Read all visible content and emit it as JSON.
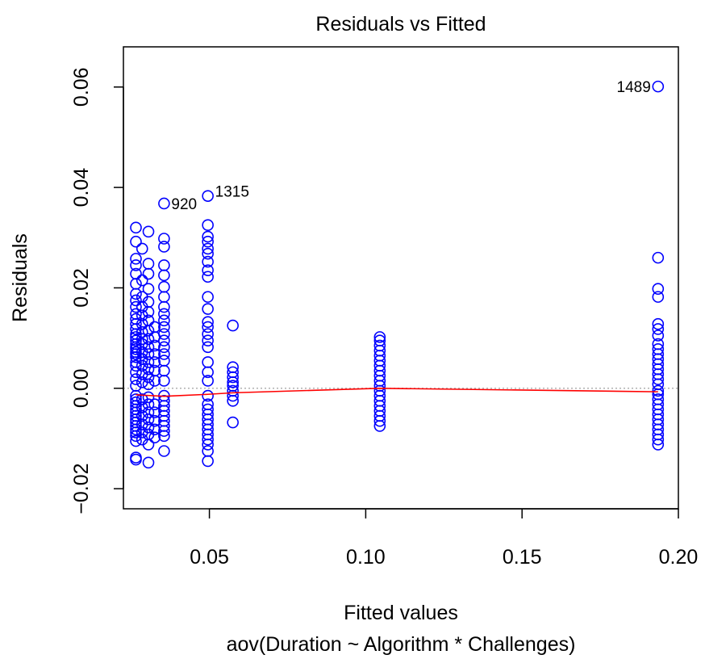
{
  "chart_data": {
    "type": "scatter",
    "title": "Residuals vs Fitted",
    "xlabel": "Fitted values",
    "sublabel": "aov(Duration ~ Algorithm * Challenges)",
    "ylabel": "Residuals",
    "xlim": [
      0.0225,
      0.2
    ],
    "ylim": [
      -0.024,
      0.068
    ],
    "x_ticks": [
      0.05,
      0.1,
      0.15,
      0.2
    ],
    "x_tick_labels": [
      "0.05",
      "0.10",
      "0.15",
      "0.20"
    ],
    "y_ticks": [
      -0.02,
      0.0,
      0.02,
      0.04,
      0.06
    ],
    "y_tick_labels": [
      "−0.02",
      "0.00",
      "0.02",
      "0.04",
      "0.06"
    ],
    "grid": false,
    "reference_line_y": 0,
    "point_color": "#0000ff",
    "smooth_color": "#ff0000",
    "reference_color": "#b0b0b0",
    "groups": [
      {
        "x": 0.0265,
        "residuals": [
          -0.0142,
          -0.0138,
          -0.0105,
          -0.0095,
          -0.0088,
          -0.0082,
          -0.0075,
          -0.0068,
          -0.0062,
          -0.0055,
          -0.0048,
          -0.0042,
          -0.0035,
          -0.0028,
          -0.0022,
          -0.0015,
          0.0005,
          0.0018,
          0.0032,
          0.0045,
          0.0052,
          0.0062,
          0.0068,
          0.0072,
          0.0078,
          0.0082,
          0.0088,
          0.0095,
          0.0102,
          0.0108,
          0.0118,
          0.0128,
          0.0138,
          0.0148,
          0.0162,
          0.0175,
          0.0188,
          0.0208,
          0.0228,
          0.0245,
          0.0258,
          0.0292,
          0.032
        ]
      },
      {
        "x": 0.0285,
        "residuals": [
          -0.0102,
          -0.0088,
          -0.0072,
          -0.0055,
          -0.0038,
          -0.0022,
          0.0012,
          0.0028,
          0.0045,
          0.0058,
          0.0072,
          0.0088,
          0.0098,
          0.0112,
          0.0128,
          0.0145,
          0.0162,
          0.0182,
          0.0215,
          0.0278
        ]
      },
      {
        "x": 0.0305,
        "residuals": [
          -0.0148,
          -0.0112,
          -0.0092,
          -0.0078,
          -0.0062,
          -0.0048,
          -0.0032,
          -0.0018,
          0.0008,
          0.0022,
          0.0038,
          0.0052,
          0.0068,
          0.0082,
          0.0098,
          0.0115,
          0.0135,
          0.0152,
          0.0172,
          0.0198,
          0.0228,
          0.0248,
          0.0312
        ]
      },
      {
        "x": 0.0325,
        "residuals": [
          -0.0098,
          -0.0082,
          -0.0065,
          -0.0048,
          -0.0032,
          0.0015,
          0.0035,
          0.0052,
          0.0068,
          0.0085,
          0.0102,
          0.0122
        ]
      },
      {
        "x": 0.0355,
        "residuals": [
          -0.0125,
          -0.0095,
          -0.0085,
          -0.0075,
          -0.0065,
          -0.0055,
          -0.0045,
          -0.0035,
          -0.0025,
          -0.0015,
          0.0015,
          0.0035,
          0.0055,
          0.0068,
          0.0082,
          0.0095,
          0.0108,
          0.0122,
          0.0135,
          0.0148,
          0.0162,
          0.0182,
          0.0202,
          0.0225,
          0.0245,
          0.0282,
          0.0298,
          0.0368
        ]
      },
      {
        "x": 0.0495,
        "residuals": [
          -0.0145,
          -0.0125,
          -0.0112,
          -0.0102,
          -0.0092,
          -0.0082,
          -0.0072,
          -0.0062,
          -0.0052,
          -0.0042,
          -0.0032,
          -0.0015,
          0.0015,
          0.0032,
          0.0052,
          0.0082,
          0.0095,
          0.0108,
          0.0122,
          0.0132,
          0.0158,
          0.0182,
          0.0222,
          0.0235,
          0.0252,
          0.0268,
          0.0278,
          0.0292,
          0.0302,
          0.0325,
          0.0383
        ]
      },
      {
        "x": 0.0575,
        "residuals": [
          -0.0068,
          -0.0025,
          -0.0015,
          -0.0005,
          0.0005,
          0.0012,
          0.0022,
          0.0032,
          0.0042,
          0.0125
        ]
      },
      {
        "x": 0.1045,
        "residuals": [
          -0.0075,
          -0.0065,
          -0.0055,
          -0.0045,
          -0.0035,
          -0.0025,
          -0.0015,
          -0.0005,
          0.0005,
          0.0015,
          0.0025,
          0.0035,
          0.0045,
          0.0055,
          0.0065,
          0.0075,
          0.0085,
          0.0095,
          0.0102
        ]
      },
      {
        "x": 0.1935,
        "residuals": [
          -0.0112,
          -0.0102,
          -0.0092,
          -0.0082,
          -0.0072,
          -0.0062,
          -0.0052,
          -0.0042,
          -0.0032,
          -0.0022,
          -0.0012,
          -0.0005,
          0.0008,
          0.0018,
          0.0028,
          0.0038,
          0.0048,
          0.0058,
          0.0068,
          0.0078,
          0.0088,
          0.0105,
          0.0118,
          0.0128,
          0.0182,
          0.0198,
          0.026,
          0.0601
        ]
      }
    ],
    "smooth_line": [
      {
        "x": 0.0265,
        "y": -0.0013
      },
      {
        "x": 0.0355,
        "y": -0.0016
      },
      {
        "x": 0.0495,
        "y": -0.0012
      },
      {
        "x": 0.0575,
        "y": -0.0009
      },
      {
        "x": 0.1045,
        "y": 0.0
      },
      {
        "x": 0.1935,
        "y": -0.0007
      }
    ],
    "annotations": [
      {
        "text": "920",
        "x": 0.0355,
        "y": 0.0368,
        "side": "right"
      },
      {
        "text": "1315",
        "x": 0.0495,
        "y": 0.0383,
        "side": "right"
      },
      {
        "text": "1489",
        "x": 0.1935,
        "y": 0.0601,
        "side": "left"
      }
    ]
  }
}
